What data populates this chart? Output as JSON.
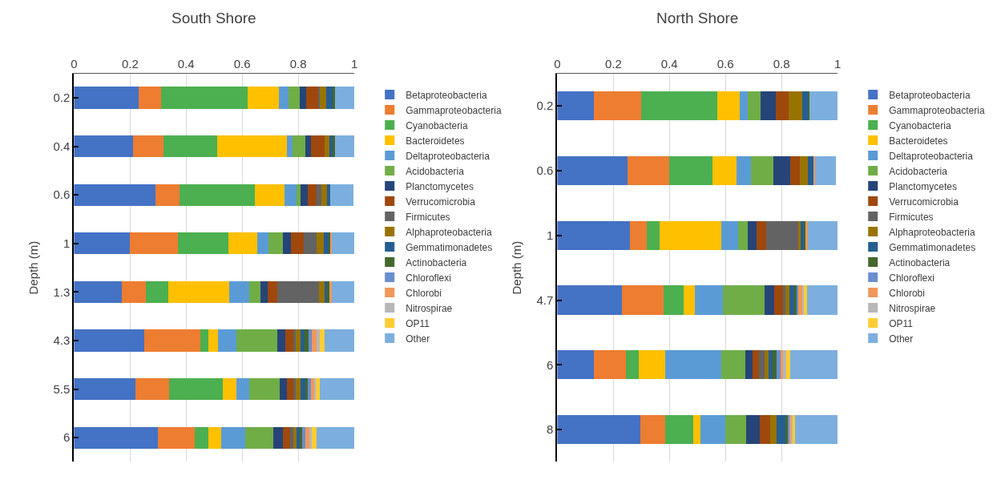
{
  "chart_data": [
    {
      "type": "bar",
      "title": "South Shore",
      "ylabel": "Depth (m)",
      "orientation": "horizontal",
      "stacked": true,
      "xlim": [
        0,
        1
      ],
      "xticks": [
        0,
        0.2,
        0.4,
        0.6,
        0.8,
        1
      ],
      "grid": "x",
      "legend": "right",
      "categories": [
        "0.2",
        "0.4",
        "0.6",
        "1",
        "1.3",
        "4.3",
        "5.5",
        "6"
      ],
      "series": [
        {
          "name": "Betaproteobacteria",
          "color": "#4472c4",
          "values": [
            0.23,
            0.21,
            0.29,
            0.2,
            0.17,
            0.25,
            0.22,
            0.3
          ]
        },
        {
          "name": "Gammaproteobacteria",
          "color": "#ed7d31",
          "values": [
            0.08,
            0.11,
            0.085,
            0.17,
            0.085,
            0.2,
            0.12,
            0.13
          ]
        },
        {
          "name": "Cyanobacteria",
          "color": "#4caf50",
          "values": [
            0.31,
            0.19,
            0.27,
            0.18,
            0.08,
            0.03,
            0.19,
            0.05
          ]
        },
        {
          "name": "Bacteroidetes",
          "color": "#ffc000",
          "values": [
            0.11,
            0.25,
            0.105,
            0.105,
            0.22,
            0.035,
            0.05,
            0.045
          ]
        },
        {
          "name": "Deltaproteobacteria",
          "color": "#5b9bd5",
          "values": [
            0.036,
            0.02,
            0.045,
            0.04,
            0.07,
            0.065,
            0.045,
            0.085
          ]
        },
        {
          "name": "Acidobacteria",
          "color": "#70ad47",
          "values": [
            0.039,
            0.045,
            0.012,
            0.05,
            0.04,
            0.145,
            0.11,
            0.1
          ]
        },
        {
          "name": "Planctomycetes",
          "color": "#264478",
          "values": [
            0.024,
            0.02,
            0.028,
            0.03,
            0.025,
            0.03,
            0.025,
            0.035
          ]
        },
        {
          "name": "Verrucomicrobia",
          "color": "#9e480e",
          "values": [
            0.045,
            0.05,
            0.03,
            0.045,
            0.035,
            0.027,
            0.025,
            0.027
          ]
        },
        {
          "name": "Firmicutes",
          "color": "#636363",
          "values": [
            0.003,
            0,
            0.018,
            0.045,
            0.15,
            0.01,
            0.005,
            0.01
          ]
        },
        {
          "name": "Alphaproteobacteria",
          "color": "#997300",
          "values": [
            0.022,
            0.015,
            0.02,
            0.025,
            0.02,
            0.015,
            0.017,
            0.012
          ]
        },
        {
          "name": "Gemmatimonadetes",
          "color": "#255e91",
          "values": [
            0.026,
            0.015,
            0.012,
            0.02,
            0.01,
            0.015,
            0.017,
            0.015
          ]
        },
        {
          "name": "Actinobacteria",
          "color": "#43682b",
          "values": [
            0.005,
            0.005,
            null,
            0.005,
            0.005,
            0.015,
            0.01,
            0.005
          ]
        },
        {
          "name": "Chloroflexi",
          "color": "#698ed0",
          "values": [
            0,
            0,
            0,
            0,
            0,
            0.012,
            0.01,
            0.01
          ]
        },
        {
          "name": "Chlorobi",
          "color": "#f1975a",
          "values": [
            0,
            0,
            0,
            0.005,
            0.01,
            0.015,
            0.012,
            0.015
          ]
        },
        {
          "name": "Nitrospirae",
          "color": "#b7b7b7",
          "values": [
            0,
            0,
            0,
            0,
            0,
            0.012,
            0.007,
            0.01
          ]
        },
        {
          "name": "OP11",
          "color": "#ffcd33",
          "values": [
            0,
            0,
            0,
            0,
            0,
            0.018,
            0.013,
            0.015
          ]
        },
        {
          "name": "Other",
          "color": "#7cafdd",
          "values": [
            0.07,
            0.07,
            0.082,
            0.08,
            0.08,
            0.106,
            0.124,
            0.136
          ]
        }
      ]
    },
    {
      "type": "bar",
      "title": "North Shore",
      "ylabel": "Depth (m)",
      "orientation": "horizontal",
      "stacked": true,
      "xlim": [
        0,
        1
      ],
      "xticks": [
        0,
        0.2,
        0.4,
        0.6,
        0.8,
        1
      ],
      "grid": "x",
      "legend": "right",
      "categories": [
        "0.2",
        "0.6",
        "1",
        "4.7",
        "6",
        "8"
      ],
      "series": [
        {
          "name": "Betaproteobacteria",
          "color": "#4472c4",
          "values": [
            0.13,
            0.25,
            0.26,
            0.23,
            0.13,
            0.295
          ]
        },
        {
          "name": "Gammaproteobacteria",
          "color": "#ed7d31",
          "values": [
            0.17,
            0.15,
            0.06,
            0.15,
            0.115,
            0.09
          ]
        },
        {
          "name": "Cyanobacteria",
          "color": "#4caf50",
          "values": [
            0.27,
            0.155,
            0.045,
            0.07,
            0.045,
            0.1
          ]
        },
        {
          "name": "Bacteroidetes",
          "color": "#ffc000",
          "values": [
            0.08,
            0.085,
            0.22,
            0.04,
            0.095,
            0.025
          ]
        },
        {
          "name": "Deltaproteobacteria",
          "color": "#5b9bd5",
          "values": [
            0.03,
            0.05,
            0.06,
            0.1,
            0.2,
            0.09
          ]
        },
        {
          "name": "Acidobacteria",
          "color": "#70ad47",
          "values": [
            0.045,
            0.08,
            0.035,
            0.15,
            0.087,
            0.075
          ]
        },
        {
          "name": "Planctomycetes",
          "color": "#264478",
          "values": [
            0.055,
            0.06,
            0.03,
            0.035,
            0.025,
            0.047
          ]
        },
        {
          "name": "Verrucomicrobia",
          "color": "#9e480e",
          "values": [
            0.045,
            0.035,
            0.035,
            0.03,
            0.023,
            0.038
          ]
        },
        {
          "name": "Firmicutes",
          "color": "#636363",
          "values": [
            0,
            0,
            0.115,
            0.008,
            0.02,
            0
          ]
        },
        {
          "name": "Alphaproteobacteria",
          "color": "#997300",
          "values": [
            0.05,
            0.03,
            0.008,
            0.015,
            0.013,
            0.022
          ]
        },
        {
          "name": "Gemmatimonadetes",
          "color": "#255e91",
          "values": [
            0.02,
            0.02,
            0.015,
            0.02,
            0.015,
            0.035
          ]
        },
        {
          "name": "Actinobacteria",
          "color": "#43682b",
          "values": [
            0.005,
            null,
            0.005,
            0.005,
            0.013,
            0.005
          ]
        },
        {
          "name": "Chloroflexi",
          "color": "#698ed0",
          "values": [
            0,
            0,
            0,
            0.008,
            0.015,
            0.007
          ]
        },
        {
          "name": "Chlorobi",
          "color": "#f1975a",
          "values": [
            0,
            0.005,
            0.005,
            0.012,
            0.01,
            0.008
          ]
        },
        {
          "name": "Nitrospirae",
          "color": "#b7b7b7",
          "values": [
            0,
            0,
            0,
            0.008,
            0.01,
            0.005
          ]
        },
        {
          "name": "OP11",
          "color": "#ffcd33",
          "values": [
            0,
            0,
            0,
            0.01,
            0.015,
            0.005
          ]
        },
        {
          "name": "Other",
          "color": "#7cafdd",
          "values": [
            0.1,
            0.075,
            0.107,
            0.109,
            0.169,
            0.153
          ]
        }
      ]
    }
  ]
}
